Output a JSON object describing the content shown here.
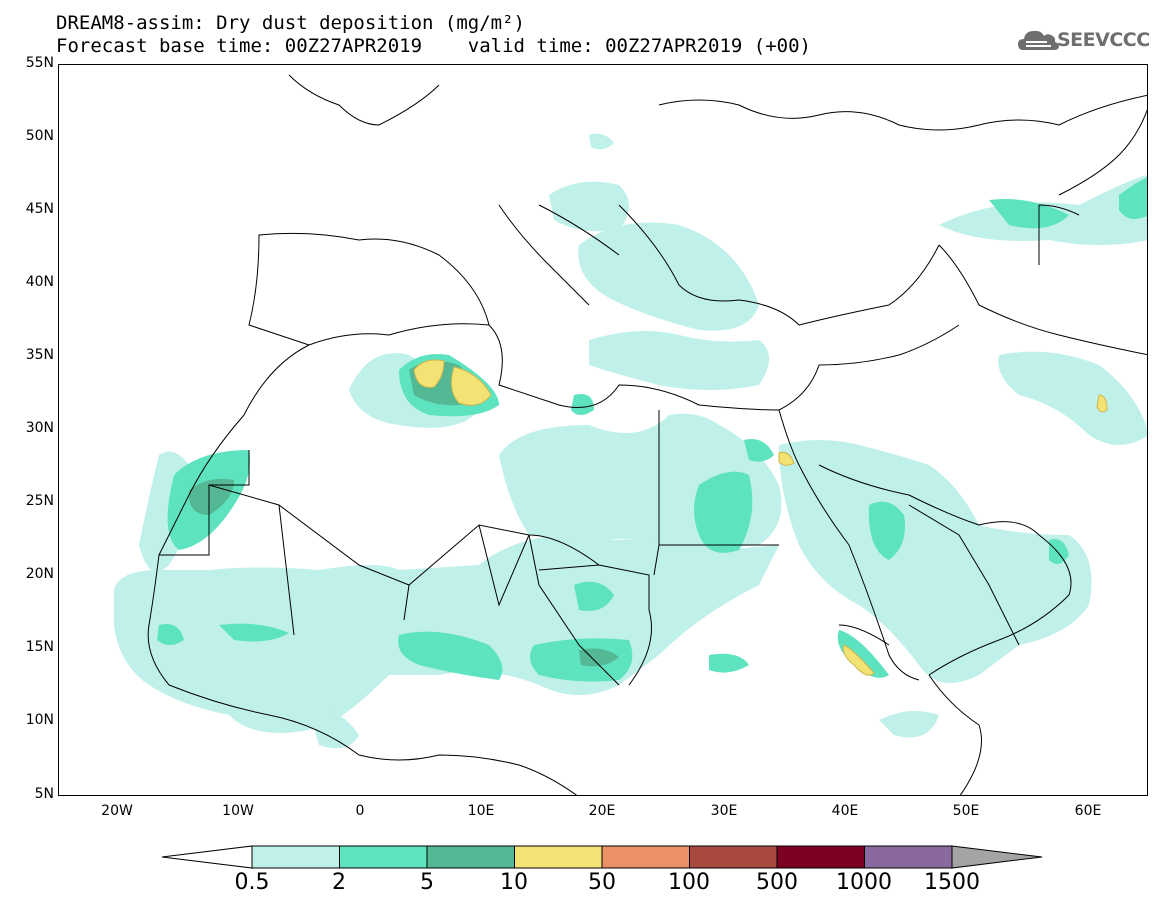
{
  "title": {
    "line1": "DREAM8-assim: Dry dust deposition (mg/m²)",
    "line2": "Forecast base time: 00Z27APR2019    valid time: 00Z27APR2019 (+00)"
  },
  "logo": {
    "text": "SEEVCCC",
    "icon": "cloud-logo-icon"
  },
  "axes": {
    "lat_labels": [
      "55N",
      "50N",
      "45N",
      "40N",
      "35N",
      "30N",
      "25N",
      "20N",
      "15N",
      "10N",
      "5N"
    ],
    "lon_labels": [
      "20W",
      "10W",
      "0",
      "10E",
      "20E",
      "30E",
      "40E",
      "50E",
      "60E"
    ]
  },
  "colorbar": {
    "labels": [
      "0.5",
      "2",
      "5",
      "10",
      "50",
      "100",
      "500",
      "1000",
      "1500"
    ],
    "colors": [
      "#ffffff",
      "#bff0ea",
      "#5de3bf",
      "#55b894",
      "#f3e374",
      "#eb9168",
      "#a84a3d",
      "#7c0021",
      "#8a6a9e",
      "#a4a4a4"
    ]
  },
  "colors": {
    "low": "#bff0ea",
    "mid": "#5de3bf",
    "high": "#55b894",
    "peak": "#f3e374",
    "border": "#000000"
  }
}
